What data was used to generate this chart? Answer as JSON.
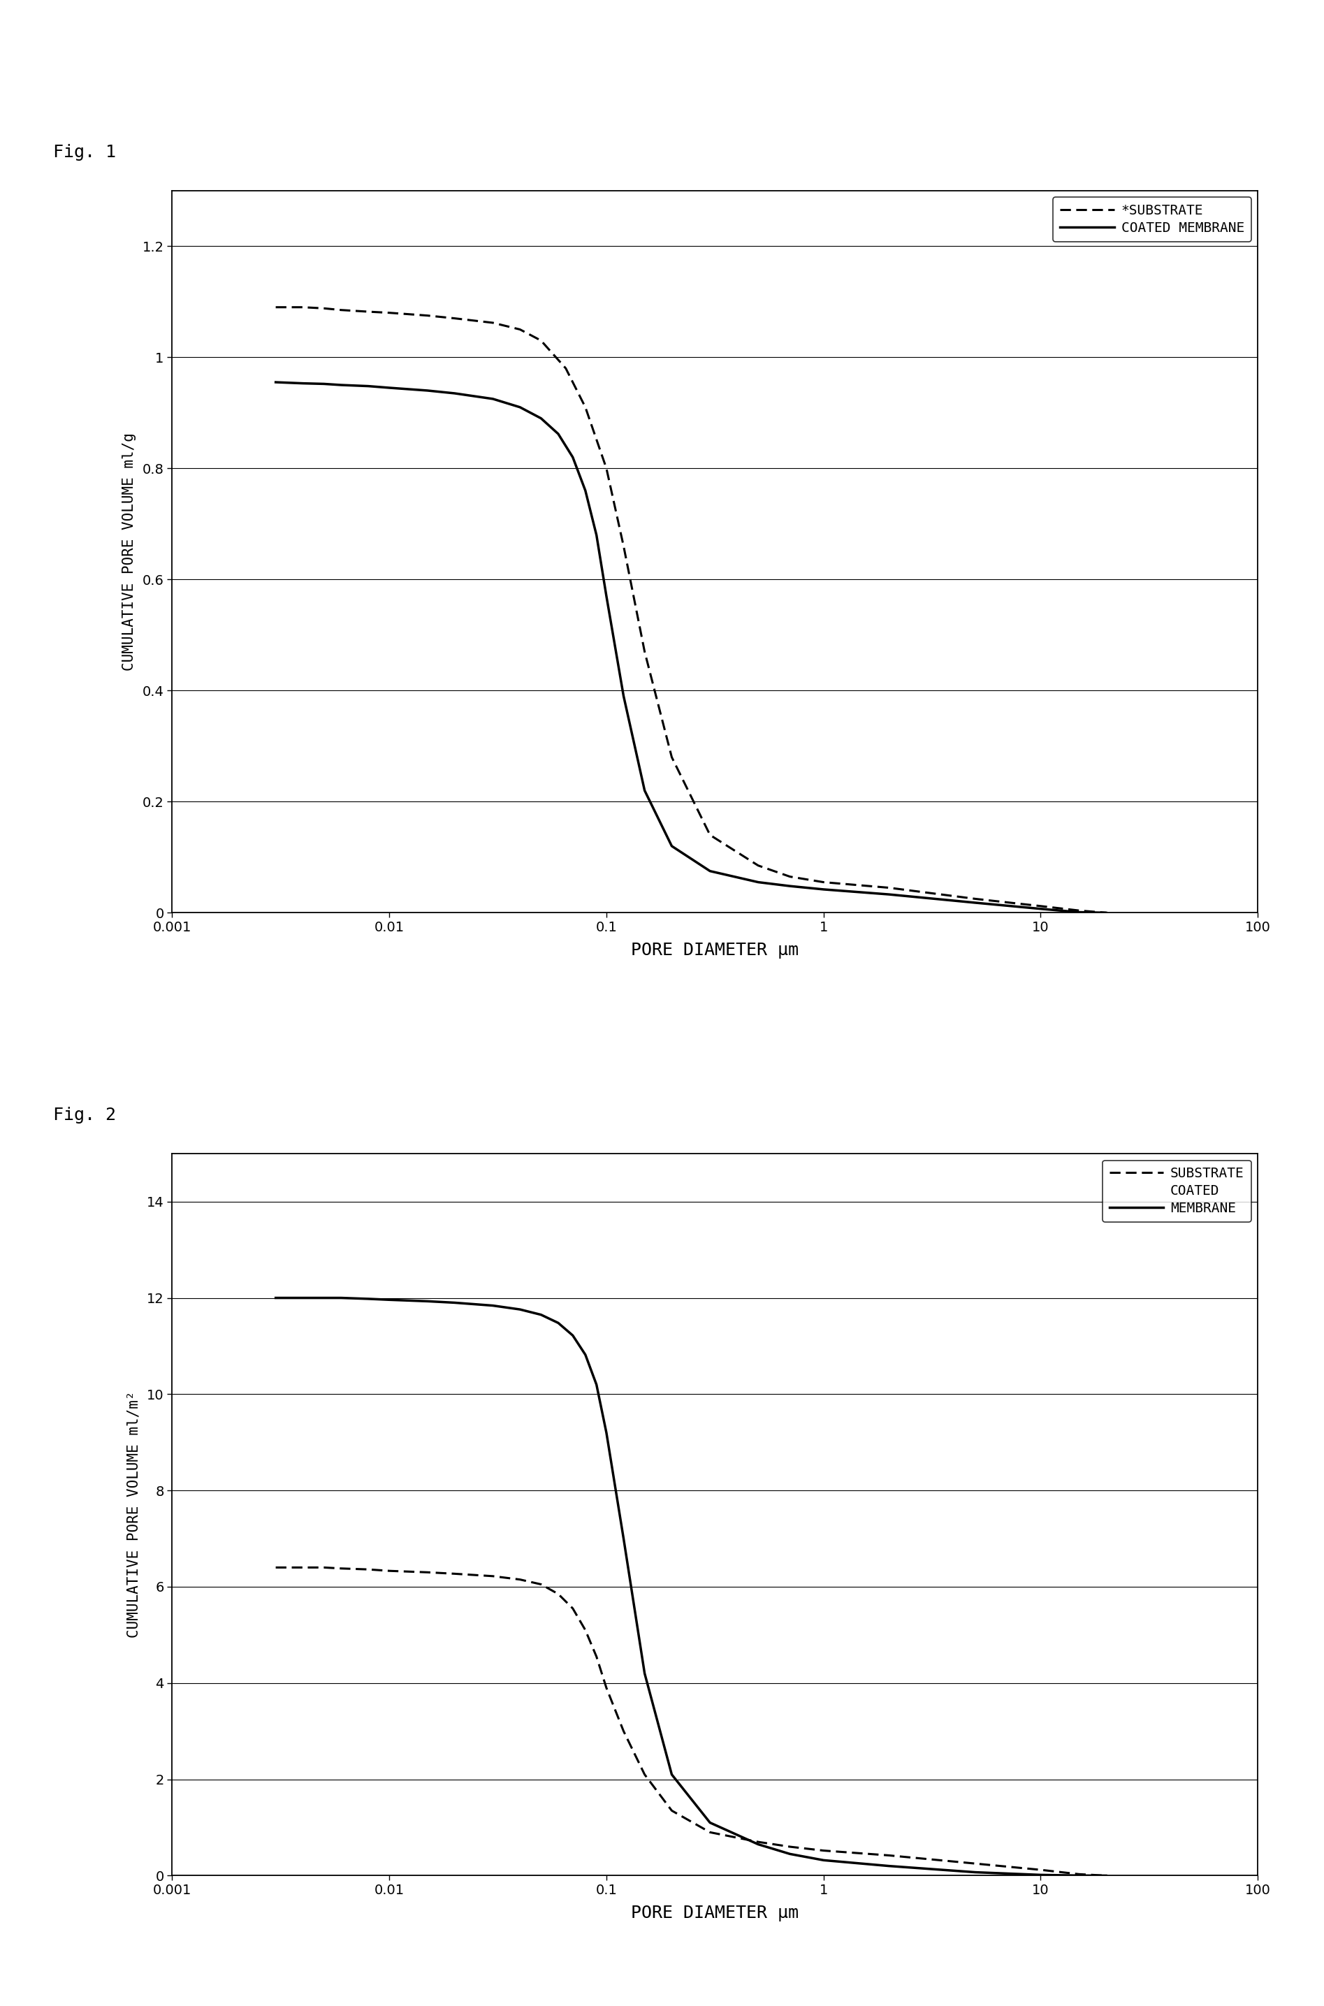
{
  "fig1_title": "Fig. 1",
  "fig2_title": "Fig. 2",
  "fig1_ylabel": "CUMULATIVE PORE VOLUME ml/g",
  "fig2_ylabel": "CUMULATIVE PORE VOLUME ml/m²",
  "xlabel": "PORE DIAMETER μm",
  "fig1_ylim": [
    0,
    1.3
  ],
  "fig2_ylim": [
    0,
    15
  ],
  "fig1_yticks": [
    0,
    0.2,
    0.4,
    0.6,
    0.8,
    1.0,
    1.2
  ],
  "fig2_yticks": [
    0,
    2,
    4,
    6,
    8,
    10,
    12,
    14
  ],
  "xtick_vals": [
    0.001,
    0.01,
    0.1,
    1,
    10,
    100
  ],
  "background": "#ffffff",
  "fig1_substrate_x": [
    0.003,
    0.0035,
    0.004,
    0.005,
    0.006,
    0.008,
    0.01,
    0.015,
    0.02,
    0.03,
    0.04,
    0.05,
    0.065,
    0.08,
    0.1,
    0.12,
    0.15,
    0.2,
    0.3,
    0.5,
    0.7,
    1.0,
    2.0,
    5.0,
    10.0,
    15.0,
    20.0
  ],
  "fig1_substrate_y": [
    1.09,
    1.09,
    1.09,
    1.088,
    1.085,
    1.082,
    1.08,
    1.075,
    1.07,
    1.062,
    1.05,
    1.03,
    0.98,
    0.91,
    0.8,
    0.66,
    0.47,
    0.28,
    0.14,
    0.085,
    0.065,
    0.055,
    0.045,
    0.025,
    0.012,
    0.004,
    0.0
  ],
  "fig1_coated_x": [
    0.003,
    0.004,
    0.005,
    0.006,
    0.008,
    0.01,
    0.015,
    0.02,
    0.03,
    0.04,
    0.05,
    0.06,
    0.07,
    0.08,
    0.09,
    0.1,
    0.12,
    0.15,
    0.2,
    0.3,
    0.5,
    0.7,
    1.0,
    2.0,
    5.0,
    10.0,
    15.0,
    20.0
  ],
  "fig1_coated_y": [
    0.955,
    0.953,
    0.952,
    0.95,
    0.948,
    0.945,
    0.94,
    0.935,
    0.925,
    0.91,
    0.89,
    0.862,
    0.82,
    0.76,
    0.68,
    0.57,
    0.39,
    0.22,
    0.12,
    0.075,
    0.055,
    0.048,
    0.042,
    0.033,
    0.018,
    0.007,
    0.001,
    0.0
  ],
  "fig2_substrate_x": [
    0.003,
    0.004,
    0.005,
    0.006,
    0.008,
    0.01,
    0.015,
    0.02,
    0.03,
    0.04,
    0.05,
    0.06,
    0.07,
    0.08,
    0.09,
    0.1,
    0.12,
    0.15,
    0.2,
    0.3,
    0.5,
    0.7,
    1.0,
    2.0,
    5.0,
    10.0,
    15.0,
    20.0
  ],
  "fig2_substrate_y": [
    6.4,
    6.4,
    6.4,
    6.38,
    6.36,
    6.33,
    6.3,
    6.27,
    6.22,
    6.15,
    6.05,
    5.85,
    5.55,
    5.1,
    4.55,
    3.9,
    3.0,
    2.1,
    1.35,
    0.9,
    0.7,
    0.6,
    0.52,
    0.42,
    0.25,
    0.12,
    0.03,
    0.0
  ],
  "fig2_coated_x": [
    0.003,
    0.004,
    0.005,
    0.006,
    0.008,
    0.01,
    0.015,
    0.02,
    0.03,
    0.04,
    0.05,
    0.06,
    0.07,
    0.08,
    0.09,
    0.1,
    0.12,
    0.15,
    0.2,
    0.3,
    0.5,
    0.7,
    1.0,
    2.0,
    5.0,
    10.0,
    15.0,
    20.0
  ],
  "fig2_coated_y": [
    12.0,
    12.0,
    12.0,
    12.0,
    11.98,
    11.96,
    11.93,
    11.9,
    11.84,
    11.76,
    11.65,
    11.48,
    11.22,
    10.82,
    10.2,
    9.2,
    7.0,
    4.2,
    2.1,
    1.1,
    0.65,
    0.45,
    0.32,
    0.2,
    0.07,
    0.015,
    0.002,
    0.0
  ],
  "fig1_legend1": "*SUBSTRATE",
  "fig1_legend2": "COATED MEMBRANE",
  "fig2_legend1": "SUBSTRATE",
  "fig2_legend2": "COATED",
  "fig2_legend3": "MEMBRANE"
}
